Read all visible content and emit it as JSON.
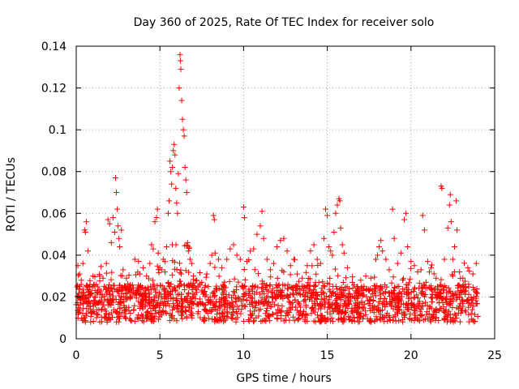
{
  "chart_data": {
    "type": "scatter",
    "title": "Day 360 of 2025, Rate Of TEC Index for receiver solo",
    "xlabel": "GPS time / hours",
    "ylabel": "ROTI / TECUs",
    "xlim": [
      0,
      25
    ],
    "ylim": [
      0,
      0.14
    ],
    "xticks": [
      0,
      5,
      10,
      15,
      20,
      25
    ],
    "yticks": [
      0,
      0.02,
      0.04,
      0.06,
      0.08,
      0.1,
      0.12,
      0.14
    ],
    "xtick_labels": [
      "0",
      "5",
      "10",
      "15",
      "20",
      "25"
    ],
    "ytick_labels": [
      "0",
      "0.02",
      "0.04",
      "0.06",
      "0.08",
      "0.1",
      "0.12",
      "0.14"
    ],
    "grid": true,
    "marker": "plus",
    "color": "#ff0000",
    "series": [
      {
        "name": "ROTI",
        "points": [
          [
            0.1,
            0.035
          ],
          [
            0.15,
            0.02
          ],
          [
            0.2,
            0.031
          ],
          [
            0.3,
            0.028
          ],
          [
            0.4,
            0.036
          ],
          [
            0.45,
            0.022
          ],
          [
            0.5,
            0.052
          ],
          [
            0.55,
            0.051
          ],
          [
            0.6,
            0.056
          ],
          [
            0.7,
            0.042
          ],
          [
            0.8,
            0.025
          ],
          [
            1.0,
            0.03
          ],
          [
            1.2,
            0.026
          ],
          [
            1.4,
            0.03
          ],
          [
            1.6,
            0.029
          ],
          [
            1.8,
            0.036
          ],
          [
            1.9,
            0.057
          ],
          [
            2.0,
            0.055
          ],
          [
            2.1,
            0.046
          ],
          [
            2.2,
            0.058
          ],
          [
            2.3,
            0.051
          ],
          [
            2.35,
            0.077
          ],
          [
            2.4,
            0.07
          ],
          [
            2.45,
            0.062
          ],
          [
            2.5,
            0.054
          ],
          [
            2.55,
            0.048
          ],
          [
            2.6,
            0.044
          ],
          [
            2.7,
            0.052
          ],
          [
            2.8,
            0.033
          ],
          [
            3.0,
            0.029
          ],
          [
            3.2,
            0.024
          ],
          [
            3.5,
            0.038
          ],
          [
            3.8,
            0.031
          ],
          [
            4.0,
            0.034
          ],
          [
            4.2,
            0.03
          ],
          [
            4.4,
            0.036
          ],
          [
            4.5,
            0.045
          ],
          [
            4.6,
            0.043
          ],
          [
            4.7,
            0.056
          ],
          [
            4.8,
            0.058
          ],
          [
            4.85,
            0.062
          ],
          [
            4.9,
            0.041
          ],
          [
            5.0,
            0.034
          ],
          [
            5.1,
            0.033
          ],
          [
            5.2,
            0.038
          ],
          [
            5.3,
            0.037
          ],
          [
            5.4,
            0.044
          ],
          [
            5.5,
            0.06
          ],
          [
            5.55,
            0.066
          ],
          [
            5.6,
            0.085
          ],
          [
            5.65,
            0.08
          ],
          [
            5.7,
            0.074
          ],
          [
            5.75,
            0.082
          ],
          [
            5.8,
            0.09
          ],
          [
            5.85,
            0.093
          ],
          [
            5.9,
            0.088
          ],
          [
            5.95,
            0.072
          ],
          [
            6.0,
            0.065
          ],
          [
            6.05,
            0.06
          ],
          [
            6.1,
            0.079
          ],
          [
            6.15,
            0.12
          ],
          [
            6.2,
            0.136
          ],
          [
            6.22,
            0.133
          ],
          [
            6.25,
            0.129
          ],
          [
            6.3,
            0.114
          ],
          [
            6.35,
            0.105
          ],
          [
            6.4,
            0.1
          ],
          [
            6.45,
            0.097
          ],
          [
            6.5,
            0.082
          ],
          [
            6.55,
            0.076
          ],
          [
            6.6,
            0.07
          ],
          [
            6.65,
            0.046
          ],
          [
            6.7,
            0.042
          ],
          [
            6.8,
            0.038
          ],
          [
            6.9,
            0.036
          ],
          [
            7.0,
            0.03
          ],
          [
            7.2,
            0.028
          ],
          [
            7.5,
            0.027
          ],
          [
            7.8,
            0.031
          ],
          [
            8.0,
            0.036
          ],
          [
            8.1,
            0.04
          ],
          [
            8.2,
            0.059
          ],
          [
            8.25,
            0.057
          ],
          [
            8.3,
            0.041
          ],
          [
            8.5,
            0.038
          ],
          [
            8.7,
            0.034
          ],
          [
            9.0,
            0.038
          ],
          [
            9.2,
            0.043
          ],
          [
            9.4,
            0.045
          ],
          [
            9.6,
            0.04
          ],
          [
            9.8,
            0.038
          ],
          [
            10.0,
            0.063
          ],
          [
            10.05,
            0.058
          ],
          [
            10.2,
            0.037
          ],
          [
            10.4,
            0.042
          ],
          [
            10.6,
            0.043
          ],
          [
            10.8,
            0.05
          ],
          [
            11.0,
            0.054
          ],
          [
            11.1,
            0.061
          ],
          [
            11.2,
            0.048
          ],
          [
            11.4,
            0.038
          ],
          [
            11.6,
            0.033
          ],
          [
            11.8,
            0.036
          ],
          [
            12.0,
            0.044
          ],
          [
            12.2,
            0.047
          ],
          [
            12.4,
            0.048
          ],
          [
            12.6,
            0.042
          ],
          [
            12.8,
            0.035
          ],
          [
            13.0,
            0.038
          ],
          [
            13.2,
            0.031
          ],
          [
            13.5,
            0.029
          ],
          [
            13.8,
            0.035
          ],
          [
            14.0,
            0.042
          ],
          [
            14.2,
            0.045
          ],
          [
            14.4,
            0.038
          ],
          [
            14.6,
            0.036
          ],
          [
            14.8,
            0.048
          ],
          [
            14.9,
            0.062
          ],
          [
            15.0,
            0.059
          ],
          [
            15.1,
            0.044
          ],
          [
            15.2,
            0.042
          ],
          [
            15.3,
            0.04
          ],
          [
            15.4,
            0.051
          ],
          [
            15.5,
            0.06
          ],
          [
            15.6,
            0.064
          ],
          [
            15.7,
            0.067
          ],
          [
            15.75,
            0.066
          ],
          [
            15.8,
            0.053
          ],
          [
            15.9,
            0.045
          ],
          [
            16.0,
            0.041
          ],
          [
            16.2,
            0.034
          ],
          [
            16.5,
            0.027
          ],
          [
            16.8,
            0.025
          ],
          [
            17.0,
            0.028
          ],
          [
            17.3,
            0.03
          ],
          [
            17.6,
            0.029
          ],
          [
            17.9,
            0.038
          ],
          [
            18.0,
            0.04
          ],
          [
            18.1,
            0.044
          ],
          [
            18.2,
            0.047
          ],
          [
            18.3,
            0.042
          ],
          [
            18.5,
            0.038
          ],
          [
            18.7,
            0.033
          ],
          [
            18.9,
            0.062
          ],
          [
            19.0,
            0.048
          ],
          [
            19.2,
            0.036
          ],
          [
            19.4,
            0.041
          ],
          [
            19.6,
            0.057
          ],
          [
            19.7,
            0.06
          ],
          [
            19.8,
            0.044
          ],
          [
            20.0,
            0.037
          ],
          [
            20.2,
            0.035
          ],
          [
            20.4,
            0.032
          ],
          [
            20.6,
            0.033
          ],
          [
            20.7,
            0.059
          ],
          [
            20.8,
            0.052
          ],
          [
            21.0,
            0.037
          ],
          [
            21.2,
            0.034
          ],
          [
            21.5,
            0.029
          ],
          [
            21.8,
            0.073
          ],
          [
            21.85,
            0.072
          ],
          [
            22.0,
            0.038
          ],
          [
            22.2,
            0.053
          ],
          [
            22.3,
            0.064
          ],
          [
            22.35,
            0.069
          ],
          [
            22.4,
            0.056
          ],
          [
            22.5,
            0.038
          ],
          [
            22.6,
            0.044
          ],
          [
            22.7,
            0.066
          ],
          [
            22.75,
            0.052
          ],
          [
            22.9,
            0.032
          ],
          [
            23.1,
            0.029
          ],
          [
            23.4,
            0.034
          ],
          [
            23.7,
            0.031
          ],
          [
            23.9,
            0.036
          ]
        ]
      }
    ]
  }
}
